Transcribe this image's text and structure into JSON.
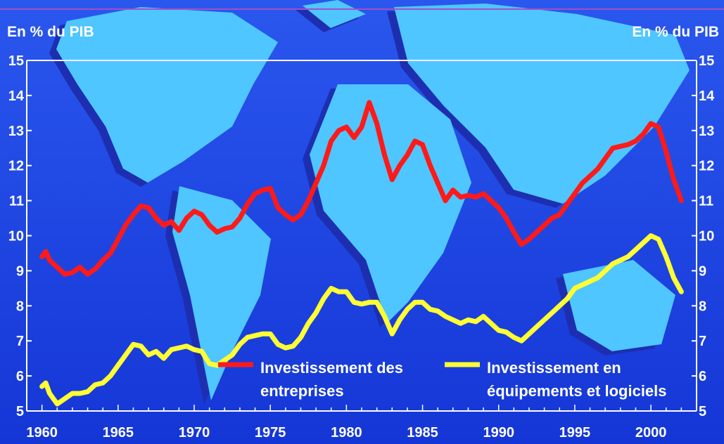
{
  "chart_data": {
    "type": "line",
    "unit_left": "En % du PIB",
    "unit_right": "En % du PIB",
    "xlim": [
      1959,
      2003
    ],
    "ylim": [
      5,
      15
    ],
    "x_ticks": [
      1960,
      1965,
      1970,
      1975,
      1980,
      1985,
      1990,
      1995,
      2000
    ],
    "y_ticks": [
      5,
      6,
      7,
      8,
      9,
      10,
      11,
      12,
      13,
      14,
      15
    ],
    "grid": false,
    "legend_position": "bottom-center",
    "series": [
      {
        "name": "Investissement des entreprises",
        "legend_lines": [
          "Investissement des",
          "entreprises"
        ],
        "color": "#ff1a1a",
        "points": [
          [
            1960,
            9.4
          ],
          [
            1960.25,
            9.55
          ],
          [
            1960.5,
            9.3
          ],
          [
            1961,
            9.1
          ],
          [
            1961.5,
            8.9
          ],
          [
            1962,
            8.95
          ],
          [
            1962.5,
            9.1
          ],
          [
            1963,
            8.9
          ],
          [
            1963.5,
            9.05
          ],
          [
            1964,
            9.3
          ],
          [
            1964.5,
            9.5
          ],
          [
            1965,
            9.9
          ],
          [
            1965.5,
            10.3
          ],
          [
            1966,
            10.6
          ],
          [
            1966.5,
            10.85
          ],
          [
            1967,
            10.8
          ],
          [
            1967.5,
            10.5
          ],
          [
            1968,
            10.3
          ],
          [
            1968.5,
            10.4
          ],
          [
            1969,
            10.15
          ],
          [
            1969.5,
            10.5
          ],
          [
            1970,
            10.7
          ],
          [
            1970.5,
            10.6
          ],
          [
            1971,
            10.3
          ],
          [
            1971.5,
            10.1
          ],
          [
            1972,
            10.2
          ],
          [
            1972.5,
            10.25
          ],
          [
            1973,
            10.5
          ],
          [
            1973.5,
            10.9
          ],
          [
            1974,
            11.2
          ],
          [
            1974.5,
            11.3
          ],
          [
            1975,
            11.35
          ],
          [
            1975.5,
            10.8
          ],
          [
            1976,
            10.6
          ],
          [
            1976.5,
            10.45
          ],
          [
            1977,
            10.6
          ],
          [
            1977.5,
            11.0
          ],
          [
            1978,
            11.5
          ],
          [
            1978.5,
            12.0
          ],
          [
            1979,
            12.7
          ],
          [
            1979.5,
            13.0
          ],
          [
            1980,
            13.1
          ],
          [
            1980.5,
            12.8
          ],
          [
            1981,
            13.1
          ],
          [
            1981.5,
            13.8
          ],
          [
            1982,
            13.2
          ],
          [
            1982.5,
            12.3
          ],
          [
            1983,
            11.6
          ],
          [
            1983.5,
            12.0
          ],
          [
            1984,
            12.3
          ],
          [
            1984.5,
            12.7
          ],
          [
            1985,
            12.6
          ],
          [
            1985.5,
            12.0
          ],
          [
            1986,
            11.5
          ],
          [
            1986.5,
            11.0
          ],
          [
            1987,
            11.3
          ],
          [
            1987.5,
            11.1
          ],
          [
            1988,
            11.15
          ],
          [
            1988.5,
            11.1
          ],
          [
            1989,
            11.2
          ],
          [
            1989.5,
            11.0
          ],
          [
            1990,
            10.8
          ],
          [
            1990.5,
            10.5
          ],
          [
            1991,
            10.1
          ],
          [
            1991.5,
            9.75
          ],
          [
            1992,
            9.9
          ],
          [
            1992.5,
            10.1
          ],
          [
            1993,
            10.3
          ],
          [
            1993.5,
            10.5
          ],
          [
            1994,
            10.6
          ],
          [
            1994.5,
            10.9
          ],
          [
            1995,
            11.2
          ],
          [
            1995.5,
            11.5
          ],
          [
            1996,
            11.7
          ],
          [
            1996.5,
            11.9
          ],
          [
            1997,
            12.2
          ],
          [
            1997.5,
            12.5
          ],
          [
            1998,
            12.55
          ],
          [
            1998.5,
            12.6
          ],
          [
            1999,
            12.7
          ],
          [
            1999.5,
            12.9
          ],
          [
            2000,
            13.2
          ],
          [
            2000.5,
            13.1
          ],
          [
            2001,
            12.4
          ],
          [
            2001.5,
            11.6
          ],
          [
            2002,
            11.0
          ]
        ]
      },
      {
        "name": "Investissement en équipements et logiciels",
        "legend_lines": [
          "Investissement en",
          "équipements et logiciels"
        ],
        "color": "#ffff33",
        "points": [
          [
            1960,
            5.7
          ],
          [
            1960.25,
            5.8
          ],
          [
            1960.5,
            5.5
          ],
          [
            1961,
            5.2
          ],
          [
            1961.5,
            5.35
          ],
          [
            1962,
            5.5
          ],
          [
            1962.5,
            5.5
          ],
          [
            1963,
            5.55
          ],
          [
            1963.5,
            5.75
          ],
          [
            1964,
            5.8
          ],
          [
            1964.5,
            6.0
          ],
          [
            1965,
            6.3
          ],
          [
            1965.5,
            6.6
          ],
          [
            1966,
            6.9
          ],
          [
            1966.5,
            6.85
          ],
          [
            1967,
            6.6
          ],
          [
            1967.5,
            6.7
          ],
          [
            1968,
            6.5
          ],
          [
            1968.5,
            6.75
          ],
          [
            1969,
            6.8
          ],
          [
            1969.5,
            6.85
          ],
          [
            1970,
            6.75
          ],
          [
            1970.5,
            6.7
          ],
          [
            1971,
            6.35
          ],
          [
            1971.5,
            6.3
          ],
          [
            1972,
            6.45
          ],
          [
            1972.5,
            6.6
          ],
          [
            1973,
            6.9
          ],
          [
            1973.5,
            7.1
          ],
          [
            1974,
            7.15
          ],
          [
            1974.5,
            7.2
          ],
          [
            1975,
            7.2
          ],
          [
            1975.5,
            6.9
          ],
          [
            1976,
            6.8
          ],
          [
            1976.5,
            6.85
          ],
          [
            1977,
            7.1
          ],
          [
            1977.5,
            7.5
          ],
          [
            1978,
            7.8
          ],
          [
            1978.5,
            8.2
          ],
          [
            1979,
            8.5
          ],
          [
            1979.5,
            8.4
          ],
          [
            1980,
            8.4
          ],
          [
            1980.5,
            8.1
          ],
          [
            1981,
            8.05
          ],
          [
            1981.5,
            8.1
          ],
          [
            1982,
            8.1
          ],
          [
            1982.5,
            7.7
          ],
          [
            1983,
            7.2
          ],
          [
            1983.5,
            7.6
          ],
          [
            1984,
            7.9
          ],
          [
            1984.5,
            8.1
          ],
          [
            1985,
            8.1
          ],
          [
            1985.5,
            7.9
          ],
          [
            1986,
            7.85
          ],
          [
            1986.5,
            7.7
          ],
          [
            1987,
            7.6
          ],
          [
            1987.5,
            7.5
          ],
          [
            1988,
            7.6
          ],
          [
            1988.5,
            7.55
          ],
          [
            1989,
            7.7
          ],
          [
            1989.5,
            7.5
          ],
          [
            1990,
            7.3
          ],
          [
            1990.5,
            7.25
          ],
          [
            1991,
            7.1
          ],
          [
            1991.5,
            7.0
          ],
          [
            1992,
            7.2
          ],
          [
            1992.5,
            7.4
          ],
          [
            1993,
            7.6
          ],
          [
            1993.5,
            7.8
          ],
          [
            1994,
            8.0
          ],
          [
            1994.5,
            8.2
          ],
          [
            1995,
            8.5
          ],
          [
            1995.5,
            8.6
          ],
          [
            1996,
            8.7
          ],
          [
            1996.5,
            8.8
          ],
          [
            1997,
            9.0
          ],
          [
            1997.5,
            9.2
          ],
          [
            1998,
            9.3
          ],
          [
            1998.5,
            9.4
          ],
          [
            1999,
            9.6
          ],
          [
            1999.5,
            9.8
          ],
          [
            2000,
            10.0
          ],
          [
            2000.5,
            9.9
          ],
          [
            2001,
            9.4
          ],
          [
            2001.5,
            8.8
          ],
          [
            2002,
            8.4
          ]
        ]
      }
    ]
  }
}
